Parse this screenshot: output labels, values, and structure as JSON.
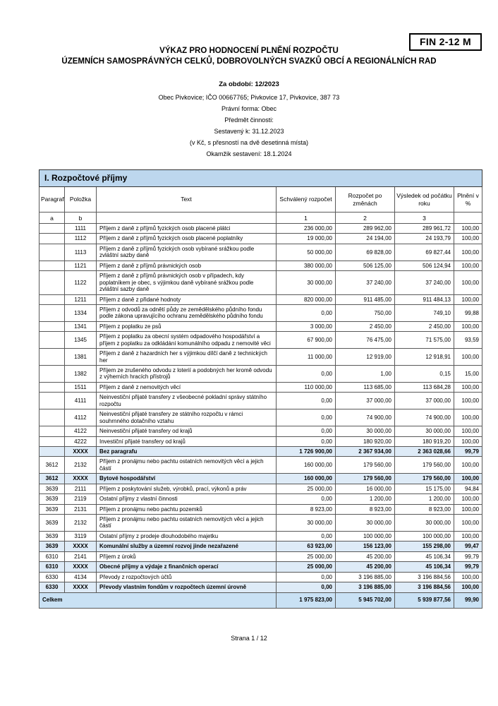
{
  "header": {
    "form_code": "FIN 2-12 M",
    "title_line1": "VÝKAZ PRO HODNOCENÍ PLNĚNÍ ROZPOČTU",
    "title_line2": "ÚZEMNÍCH SAMOSPRÁVNÝCH CELKŮ, DOBROVOLNÝCH SVAZKŮ OBCÍ A REGIONÁLNÍCH RAD",
    "period": "Za období: 12/2023",
    "organization": "Obec Pivkovice; IČO 00667765; Pivkovice 17, Pivkovice, 387 73",
    "legal_form": "Právní forma: Obec",
    "activity": "Předmět činnosti:",
    "compiled_to": "Sestavený k: 31.12.2023",
    "precision_note": "(v Kč, s přesností na dvě desetinná místa)",
    "compiled_at": "Okamžik sestavení: 18.1.2024"
  },
  "colors": {
    "section_bar": "#bdd7ee",
    "summary_row": "#deebf7",
    "total_row": "#c9e1f4",
    "grid_border": "#595959"
  },
  "table": {
    "section_title": "I. Rozpočtové příjmy",
    "columns": [
      "Paragraf",
      "Položka",
      "Text",
      "Schválený rozpočet",
      "Rozpočet po změnách",
      "Výsledek od počátku roku",
      "Plnění v %"
    ],
    "subheader": [
      "a",
      "b",
      "",
      "1",
      "2",
      "3",
      ""
    ],
    "rows": [
      {
        "type": "normal",
        "paragraf": "",
        "polozka": "1111",
        "text": "Příjem z daně z příjmů fyzických osob placené plátci",
        "schvaleny": "236 000,00",
        "po_zmenach": "289 962,00",
        "vysledek": "289 961,72",
        "plneni": "100,00"
      },
      {
        "type": "normal",
        "paragraf": "",
        "polozka": "1112",
        "text": "Příjem z daně z příjmů fyzických osob placené poplatníky",
        "schvaleny": "19 000,00",
        "po_zmenach": "24 194,00",
        "vysledek": "24 193,79",
        "plneni": "100,00"
      },
      {
        "type": "normal",
        "paragraf": "",
        "polozka": "1113",
        "text": "Příjem z daně z příjmů fyzických osob vybírané srážkou podle zvláštní sazby daně",
        "schvaleny": "50 000,00",
        "po_zmenach": "69 828,00",
        "vysledek": "69 827,44",
        "plneni": "100,00"
      },
      {
        "type": "normal",
        "paragraf": "",
        "polozka": "1121",
        "text": "Příjem z daně z příjmů právnických osob",
        "schvaleny": "380 000,00",
        "po_zmenach": "506 125,00",
        "vysledek": "506 124,94",
        "plneni": "100,00"
      },
      {
        "type": "normal",
        "paragraf": "",
        "polozka": "1122",
        "text": "Příjem z daně z příjmů právnických osob v případech, kdy poplatníkem je obec, s výjimkou daně vybírané srážkou podle zvláštní sazby daně",
        "schvaleny": "30 000,00",
        "po_zmenach": "37 240,00",
        "vysledek": "37 240,00",
        "plneni": "100,00"
      },
      {
        "type": "normal",
        "paragraf": "",
        "polozka": "1211",
        "text": "Příjem z daně z přidané hodnoty",
        "schvaleny": "820 000,00",
        "po_zmenach": "911 485,00",
        "vysledek": "911 484,13",
        "plneni": "100,00"
      },
      {
        "type": "normal",
        "paragraf": "",
        "polozka": "1334",
        "text": "Příjem z odvodů za odnětí půdy ze zemědělského půdního fondu podle zákona upravujícího ochranu zemědělského půdního fondu",
        "schvaleny": "0,00",
        "po_zmenach": "750,00",
        "vysledek": "749,10",
        "plneni": "99,88"
      },
      {
        "type": "normal",
        "paragraf": "",
        "polozka": "1341",
        "text": "Příjem z poplatku ze psů",
        "schvaleny": "3 000,00",
        "po_zmenach": "2 450,00",
        "vysledek": "2 450,00",
        "plneni": "100,00"
      },
      {
        "type": "normal",
        "paragraf": "",
        "polozka": "1345",
        "text": "Příjem z poplatku za obecní systém odpadového hospodářství a příjem z poplatku za odkládání komunálního odpadu z nemovité věci",
        "schvaleny": "67 900,00",
        "po_zmenach": "76 475,00",
        "vysledek": "71 575,00",
        "plneni": "93,59"
      },
      {
        "type": "normal",
        "paragraf": "",
        "polozka": "1381",
        "text": "Příjem z daně z hazardních her s výjimkou dílčí daně z technických her",
        "schvaleny": "11 000,00",
        "po_zmenach": "12 919,00",
        "vysledek": "12 918,91",
        "plneni": "100,00"
      },
      {
        "type": "normal",
        "paragraf": "",
        "polozka": "1382",
        "text": "Příjem ze zrušeného odvodu z loterií a podobných her kromě odvodu z výherních hracích přístrojů",
        "schvaleny": "0,00",
        "po_zmenach": "1,00",
        "vysledek": "0,15",
        "plneni": "15,00"
      },
      {
        "type": "normal",
        "paragraf": "",
        "polozka": "1511",
        "text": "Příjem z daně z nemovitých věcí",
        "schvaleny": "110 000,00",
        "po_zmenach": "113 685,00",
        "vysledek": "113 684,28",
        "plneni": "100,00"
      },
      {
        "type": "normal",
        "paragraf": "",
        "polozka": "4111",
        "text": "Neinvestiční přijaté transfery z všeobecné pokladní správy státního rozpočtu",
        "schvaleny": "0,00",
        "po_zmenach": "37 000,00",
        "vysledek": "37 000,00",
        "plneni": "100,00"
      },
      {
        "type": "normal",
        "paragraf": "",
        "polozka": "4112",
        "text": "Neinvestiční přijaté transfery ze státního rozpočtu v rámci souhrnného dotačního vztahu",
        "schvaleny": "0,00",
        "po_zmenach": "74 900,00",
        "vysledek": "74 900,00",
        "plneni": "100,00"
      },
      {
        "type": "normal",
        "paragraf": "",
        "polozka": "4122",
        "text": "Neinvestiční přijaté transfery od krajů",
        "schvaleny": "0,00",
        "po_zmenach": "30 000,00",
        "vysledek": "30 000,00",
        "plneni": "100,00"
      },
      {
        "type": "normal",
        "paragraf": "",
        "polozka": "4222",
        "text": "Investiční přijaté transfery od krajů",
        "schvaleny": "0,00",
        "po_zmenach": "180 920,00",
        "vysledek": "180 919,20",
        "plneni": "100,00"
      },
      {
        "type": "summary",
        "paragraf": "",
        "polozka": "XXXX",
        "text": "Bez paragrafu",
        "schvaleny": "1 726 900,00",
        "po_zmenach": "2 367 934,00",
        "vysledek": "2 363 028,66",
        "plneni": "99,79"
      },
      {
        "type": "normal",
        "paragraf": "3612",
        "polozka": "2132",
        "text": "Příjem z pronájmu nebo pachtu ostatních nemovitých věcí a jejich částí",
        "schvaleny": "160 000,00",
        "po_zmenach": "179 560,00",
        "vysledek": "179 560,00",
        "plneni": "100,00"
      },
      {
        "type": "summary",
        "paragraf": "3612",
        "polozka": "XXXX",
        "text": "Bytové hospodářství",
        "schvaleny": "160 000,00",
        "po_zmenach": "179 560,00",
        "vysledek": "179 560,00",
        "plneni": "100,00"
      },
      {
        "type": "normal",
        "paragraf": "3639",
        "polozka": "2111",
        "text": "Příjem z poskytování služeb, výrobků, prací, výkonů a práv",
        "schvaleny": "25 000,00",
        "po_zmenach": "16 000,00",
        "vysledek": "15 175,00",
        "plneni": "94,84"
      },
      {
        "type": "normal",
        "paragraf": "3639",
        "polozka": "2119",
        "text": "Ostatní příjmy z vlastní činnosti",
        "schvaleny": "0,00",
        "po_zmenach": "1 200,00",
        "vysledek": "1 200,00",
        "plneni": "100,00"
      },
      {
        "type": "normal",
        "paragraf": "3639",
        "polozka": "2131",
        "text": "Příjem z pronájmu nebo pachtu pozemků",
        "schvaleny": "8 923,00",
        "po_zmenach": "8 923,00",
        "vysledek": "8 923,00",
        "plneni": "100,00"
      },
      {
        "type": "normal",
        "paragraf": "3639",
        "polozka": "2132",
        "text": "Příjem z pronájmu nebo pachtu ostatních nemovitých věcí a jejich částí",
        "schvaleny": "30 000,00",
        "po_zmenach": "30 000,00",
        "vysledek": "30 000,00",
        "plneni": "100,00"
      },
      {
        "type": "normal",
        "paragraf": "3639",
        "polozka": "3119",
        "text": "Ostatní příjmy z prodeje dlouhodobého majetku",
        "schvaleny": "0,00",
        "po_zmenach": "100 000,00",
        "vysledek": "100 000,00",
        "plneni": "100,00"
      },
      {
        "type": "summary",
        "paragraf": "3639",
        "polozka": "XXXX",
        "text": "Komunální služby a územní rozvoj jinde nezařazené",
        "schvaleny": "63 923,00",
        "po_zmenach": "156 123,00",
        "vysledek": "155 298,00",
        "plneni": "99,47"
      },
      {
        "type": "normal",
        "paragraf": "6310",
        "polozka": "2141",
        "text": "Příjem z úroků",
        "schvaleny": "25 000,00",
        "po_zmenach": "45 200,00",
        "vysledek": "45 106,34",
        "plneni": "99,79"
      },
      {
        "type": "summary",
        "paragraf": "6310",
        "polozka": "XXXX",
        "text": "Obecné příjmy a výdaje z finančních operací",
        "schvaleny": "25 000,00",
        "po_zmenach": "45 200,00",
        "vysledek": "45 106,34",
        "plneni": "99,79"
      },
      {
        "type": "normal",
        "paragraf": "6330",
        "polozka": "4134",
        "text": "Převody z rozpočtových účtů",
        "schvaleny": "0,00",
        "po_zmenach": "3 196 885,00",
        "vysledek": "3 196 884,56",
        "plneni": "100,00"
      },
      {
        "type": "summary",
        "paragraf": "6330",
        "polozka": "XXXX",
        "text": "Převody vlastním fondům v rozpočtech územní úrovně",
        "schvaleny": "0,00",
        "po_zmenach": "3 196 885,00",
        "vysledek": "3 196 884,56",
        "plneni": "100,00"
      },
      {
        "type": "total",
        "paragraf": "",
        "polozka": "",
        "text": "Celkem",
        "schvaleny": "1 975 823,00",
        "po_zmenach": "5 945 702,00",
        "vysledek": "5 939 877,56",
        "plneni": "99,90"
      }
    ]
  },
  "footer": {
    "page_label": "Strana 1 / 12"
  }
}
